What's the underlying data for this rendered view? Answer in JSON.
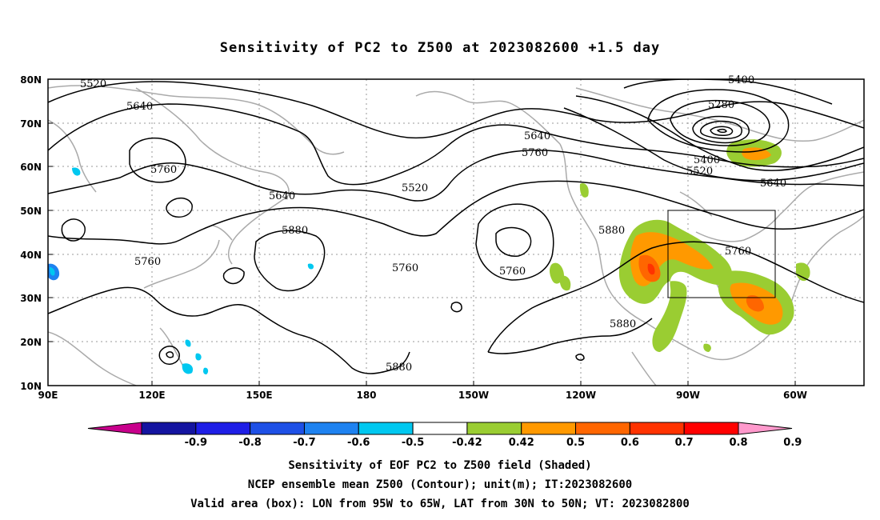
{
  "title": "Sensitivity of PC2 to Z500 at 2023082600 +1.5 day",
  "map": {
    "lat_ticks": [
      "80N",
      "70N",
      "60N",
      "50N",
      "40N",
      "30N",
      "20N",
      "10N"
    ],
    "lon_ticks": [
      "90E",
      "120E",
      "150E",
      "180",
      "150W",
      "120W",
      "90W",
      "60W"
    ],
    "contour_labels": [
      "5520",
      "5640",
      "5760",
      "5640",
      "5880",
      "5760",
      "5760",
      "5520",
      "5640",
      "5760",
      "5760",
      "5880",
      "5400",
      "5280",
      "5400",
      "5520",
      "5640",
      "5760",
      "5880",
      "5880"
    ],
    "colors": {
      "land": "#aaaaaa",
      "contour": "#000000",
      "grid": "#999999"
    }
  },
  "colorbar": {
    "labels": [
      "-0.9",
      "-0.8",
      "-0.7",
      "-0.6",
      "-0.5",
      "-0.42",
      "0.42",
      "0.5",
      "0.6",
      "0.7",
      "0.8",
      "0.9"
    ],
    "colors": [
      "#c8008c",
      "#1414a0",
      "#1e1ee6",
      "#1e50e6",
      "#1e82f0",
      "#00c8f0",
      "#ffffff",
      "#9acd32",
      "#ff9900",
      "#ff6600",
      "#ff3300",
      "#ff0000",
      "#ff99cc"
    ]
  },
  "footer": {
    "line1": "Sensitivity of EOF PC2 to Z500 field (Shaded)",
    "line2": "NCEP ensemble mean Z500 (Contour); unit(m); IT:2023082600",
    "line3": "Valid area (box): LON from 95W to 65W, LAT from 30N to 50N; VT: 2023082800"
  }
}
